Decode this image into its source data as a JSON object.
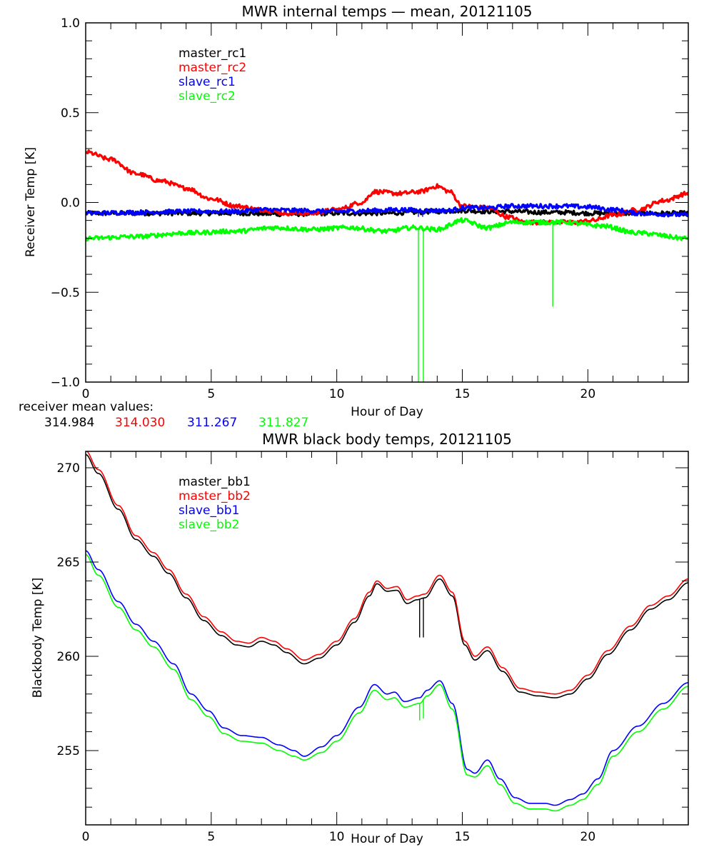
{
  "chart_data": [
    {
      "type": "line",
      "title": "MWR internal temps — mean, 20121105",
      "xlabel": "Hour of Day",
      "ylabel": "Receiver Temp [K]",
      "xlim": [
        0,
        24
      ],
      "ylim": [
        -1.0,
        1.0
      ],
      "xticks": [
        0,
        5,
        10,
        15,
        20
      ],
      "xtick_labels": [
        "0",
        "5",
        "10",
        "15",
        "20"
      ],
      "yticks": [
        1.0,
        0.5,
        0.0,
        -0.5,
        -1.0
      ],
      "ytick_labels": [
        "1.0",
        "0.5",
        "0.0",
        "−0.5",
        "−1.0"
      ],
      "grid": false,
      "legend_position": "top-left",
      "noisy": true,
      "series": [
        {
          "name": "master_rc1",
          "color": "#000000",
          "x": [
            0,
            2,
            4,
            6,
            8,
            10,
            12,
            13,
            14,
            15,
            16,
            17,
            18,
            19,
            20,
            21,
            22,
            23,
            24
          ],
          "y": [
            -0.06,
            -0.06,
            -0.06,
            -0.06,
            -0.065,
            -0.06,
            -0.06,
            -0.055,
            -0.05,
            -0.045,
            -0.05,
            -0.05,
            -0.055,
            -0.055,
            -0.06,
            -0.06,
            -0.06,
            -0.06,
            -0.06
          ],
          "spikes": []
        },
        {
          "name": "master_rc2",
          "color": "#ff0000",
          "x": [
            0,
            1,
            2,
            3,
            4,
            5,
            6,
            7,
            8,
            9,
            10,
            11,
            11.5,
            12.5,
            13.3,
            14,
            14.5,
            15,
            16,
            16.8,
            17.5,
            18.5,
            19.5,
            20.2,
            21,
            22,
            23,
            24
          ],
          "y": [
            0.28,
            0.24,
            0.16,
            0.12,
            0.08,
            0.02,
            -0.02,
            -0.04,
            -0.06,
            -0.06,
            -0.04,
            0.0,
            0.06,
            0.05,
            0.06,
            0.09,
            0.06,
            -0.02,
            -0.03,
            -0.08,
            -0.11,
            -0.11,
            -0.11,
            -0.1,
            -0.07,
            -0.04,
            0.01,
            0.05
          ],
          "spikes": []
        },
        {
          "name": "slave_rc1",
          "color": "#0000ff",
          "x": [
            0,
            2,
            4,
            6,
            7,
            8.5,
            10,
            11.5,
            12.5,
            13.5,
            14.5,
            15,
            16,
            17,
            18,
            19,
            20,
            21,
            22,
            23,
            24
          ],
          "y": [
            -0.06,
            -0.055,
            -0.05,
            -0.05,
            -0.04,
            -0.045,
            -0.05,
            -0.045,
            -0.04,
            -0.045,
            -0.045,
            -0.03,
            -0.03,
            -0.02,
            -0.02,
            -0.02,
            -0.025,
            -0.04,
            -0.06,
            -0.065,
            -0.07
          ],
          "spikes": [
            [
              13.25,
              -0.08
            ],
            [
              13.42,
              -0.08
            ]
          ]
        },
        {
          "name": "slave_rc2",
          "color": "#00ff00",
          "x": [
            0,
            2,
            4,
            6,
            7.5,
            9,
            10.5,
            12,
            13,
            14,
            15,
            16,
            17,
            19,
            20.5,
            22,
            24
          ],
          "y": [
            -0.2,
            -0.19,
            -0.17,
            -0.16,
            -0.14,
            -0.15,
            -0.14,
            -0.16,
            -0.14,
            -0.15,
            -0.1,
            -0.14,
            -0.11,
            -0.11,
            -0.13,
            -0.17,
            -0.2
          ],
          "spikes": [
            [
              13.25,
              -1.0
            ],
            [
              13.45,
              -1.0
            ],
            [
              18.6,
              -0.58
            ]
          ]
        }
      ],
      "annotation": {
        "label": "receiver mean values:",
        "values": [
          {
            "text": "314.984",
            "color": "#000000"
          },
          {
            "text": "314.030",
            "color": "#ff0000"
          },
          {
            "text": "311.267",
            "color": "#0000ff"
          },
          {
            "text": "311.827",
            "color": "#00ff00"
          }
        ]
      }
    },
    {
      "type": "line",
      "title": "MWR black body temps, 20121105",
      "xlabel": "Hour of Day",
      "ylabel": "Blackbody Temp [K]",
      "xlim": [
        0,
        24
      ],
      "ylim": [
        251.06,
        270.87
      ],
      "xticks": [
        0,
        5,
        10,
        15,
        20
      ],
      "xtick_labels": [
        "0",
        "5",
        "10",
        "15",
        "20"
      ],
      "yticks": [
        270,
        265,
        260,
        255
      ],
      "ytick_labels": [
        "270",
        "265",
        "260",
        "255"
      ],
      "grid": false,
      "legend_position": "top-left",
      "noisy": false,
      "series": [
        {
          "name": "master_bb1",
          "color": "#000000",
          "x": [
            0,
            0.5,
            1.3,
            2,
            2.7,
            3.3,
            4,
            4.7,
            5.4,
            6,
            6.5,
            7,
            7.5,
            8,
            8.7,
            9.3,
            10,
            10.7,
            11.3,
            11.6,
            12,
            12.4,
            12.8,
            13.2,
            13.5,
            14.1,
            14.6,
            15.1,
            15.5,
            16,
            16.6,
            17.3,
            18,
            18.7,
            19.3,
            20,
            20.8,
            21.7,
            22.5,
            23.2,
            24
          ],
          "y": [
            270.7,
            269.7,
            267.8,
            266.2,
            265.3,
            264.4,
            263.1,
            261.9,
            261.1,
            260.6,
            260.5,
            260.8,
            260.6,
            260.2,
            259.6,
            259.9,
            260.6,
            261.8,
            263.2,
            263.85,
            263.45,
            263.5,
            262.8,
            263.0,
            263.1,
            264.1,
            263.2,
            260.6,
            259.8,
            260.3,
            259.2,
            258.1,
            257.9,
            257.8,
            258.0,
            258.8,
            260.1,
            261.4,
            262.5,
            263.0,
            263.9
          ],
          "spikes": [
            [
              13.3,
              261.0
            ],
            [
              13.45,
              261.0
            ]
          ]
        },
        {
          "name": "master_bb2",
          "color": "#ff0000",
          "x": [
            0,
            0.5,
            1.3,
            2,
            2.7,
            3.3,
            4,
            4.7,
            5.4,
            6,
            6.5,
            7,
            7.5,
            8,
            8.7,
            9.3,
            10,
            10.7,
            11.3,
            11.6,
            12,
            12.4,
            12.8,
            13.2,
            13.5,
            14.1,
            14.6,
            15.1,
            15.5,
            16,
            16.6,
            17.3,
            18,
            18.7,
            19.3,
            20,
            20.8,
            21.7,
            22.5,
            23.2,
            24
          ],
          "y": [
            270.9,
            269.9,
            268.0,
            266.4,
            265.5,
            264.6,
            263.3,
            262.1,
            261.3,
            260.8,
            260.7,
            261.0,
            260.8,
            260.4,
            259.8,
            260.1,
            260.8,
            262.0,
            263.4,
            264.0,
            263.6,
            263.7,
            263.0,
            263.2,
            263.3,
            264.3,
            263.4,
            260.8,
            260.0,
            260.5,
            259.4,
            258.3,
            258.1,
            258.0,
            258.2,
            259.0,
            260.3,
            261.6,
            262.7,
            263.2,
            264.1
          ],
          "spikes": []
        },
        {
          "name": "slave_bb1",
          "color": "#0000ff",
          "x": [
            0,
            0.5,
            1.3,
            2,
            2.7,
            3.5,
            4.2,
            4.9,
            5.5,
            6.2,
            7,
            7.7,
            8.3,
            8.7,
            9.4,
            10,
            10.9,
            11.5,
            12,
            12.3,
            12.7,
            13.3,
            13.6,
            14.1,
            14.6,
            15.2,
            15.5,
            16,
            16.5,
            17.1,
            17.7,
            18.3,
            18.7,
            19.3,
            19.8,
            20.4,
            21,
            22,
            23,
            24
          ],
          "y": [
            265.6,
            264.6,
            262.9,
            261.7,
            260.8,
            259.6,
            258.0,
            257.1,
            256.2,
            255.8,
            255.7,
            255.3,
            255.0,
            254.7,
            255.2,
            255.8,
            257.3,
            258.5,
            258.0,
            258.1,
            257.6,
            257.8,
            258.2,
            258.7,
            257.5,
            254.0,
            253.8,
            254.5,
            253.5,
            252.5,
            252.2,
            252.2,
            252.1,
            252.4,
            252.7,
            253.5,
            255.0,
            256.3,
            257.5,
            258.6
          ],
          "spikes": []
        },
        {
          "name": "slave_bb2",
          "color": "#00ff00",
          "x": [
            0,
            0.5,
            1.3,
            2,
            2.7,
            3.5,
            4.2,
            4.9,
            5.5,
            6.2,
            7,
            7.7,
            8.3,
            8.7,
            9.4,
            10,
            10.9,
            11.5,
            12,
            12.3,
            12.7,
            13.3,
            13.6,
            14.1,
            14.6,
            15.2,
            15.5,
            16,
            16.5,
            17.1,
            17.7,
            18.3,
            18.7,
            19.3,
            19.8,
            20.4,
            21,
            22,
            23,
            24
          ],
          "y": [
            265.4,
            264.3,
            262.6,
            261.4,
            260.5,
            259.3,
            257.7,
            256.8,
            255.9,
            255.5,
            255.4,
            255.0,
            254.7,
            254.5,
            254.9,
            255.5,
            257.0,
            258.2,
            257.7,
            257.8,
            257.3,
            257.5,
            257.9,
            258.5,
            257.2,
            253.7,
            253.6,
            254.2,
            253.2,
            252.2,
            251.9,
            251.9,
            251.8,
            252.1,
            252.4,
            253.2,
            254.7,
            256.0,
            257.2,
            258.4
          ],
          "spikes": [
            [
              13.3,
              256.6
            ],
            [
              13.45,
              256.7
            ]
          ]
        }
      ]
    }
  ]
}
